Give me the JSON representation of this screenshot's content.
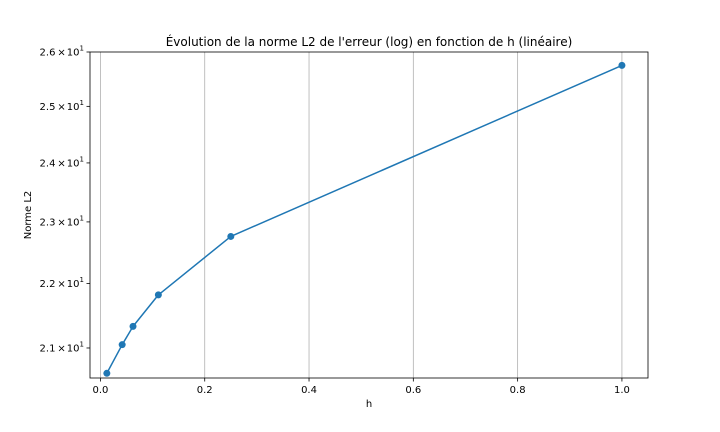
{
  "chart_data": {
    "type": "line",
    "title": "Évolution de la norme L2 de l'erreur (log) en fonction de h (linéaire)",
    "xlabel": "h",
    "ylabel": "Norme L2",
    "xscale": "linear",
    "yscale": "log",
    "xlim": [
      -0.02,
      1.05
    ],
    "ylim": [
      20.55,
      26.0
    ],
    "grid": "x-only",
    "x_ticks": [
      0.0,
      0.2,
      0.4,
      0.6,
      0.8,
      1.0
    ],
    "x_tick_labels": [
      "0.0",
      "0.2",
      "0.4",
      "0.6",
      "0.8",
      "1.0"
    ],
    "y_ticks": [
      21,
      22,
      23,
      24,
      25,
      26
    ],
    "y_tick_labels": [
      {
        "mantissa": "2.1",
        "base": "10",
        "exp": "1"
      },
      {
        "mantissa": "2.2",
        "base": "10",
        "exp": "1"
      },
      {
        "mantissa": "2.3",
        "base": "10",
        "exp": "1"
      },
      {
        "mantissa": "2.4",
        "base": "10",
        "exp": "1"
      },
      {
        "mantissa": "2.5",
        "base": "10",
        "exp": "1"
      },
      {
        "mantissa": "2.6",
        "base": "10",
        "exp": "1"
      }
    ],
    "series": [
      {
        "color": "#1f77b4",
        "marker": "circle",
        "x": [
          0.0123,
          0.0417,
          0.0625,
          0.1111,
          0.25,
          1.0
        ],
        "y": [
          20.62,
          21.05,
          21.33,
          21.82,
          22.76,
          25.75
        ]
      }
    ]
  }
}
